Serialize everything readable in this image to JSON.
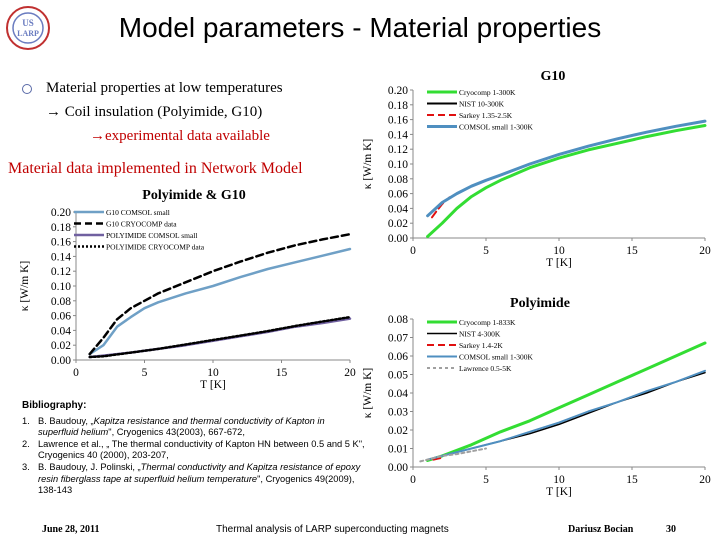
{
  "slide": {
    "title": "Model parameters - Material properties",
    "bullet_main": "Material properties at low temperatures",
    "bullet_sub": "Coil insulation (Polyimide, G10)",
    "bullet_sub_arrow": "→",
    "experimental": "→experimental data available",
    "network_model": "Material data implemented in Network Model",
    "logo_text": "US LARP"
  },
  "bibliography": {
    "heading": "Bibliography:",
    "refs": [
      {
        "num": "1.",
        "pre": "B. Baudouy, „",
        "ital": "Kapitza resistance and thermal conductivity of Kapton in superfluid helium",
        "post": "\", Cryogenics 43(2003), 667-672,"
      },
      {
        "num": "2.",
        "pre": "Lawrence et al., „ The thermal conductivity of Kapton HN between 0.5 and 5 K\", Cryogenics 40 (2000), 203-207,",
        "ital": "",
        "post": ""
      },
      {
        "num": "3.",
        "pre": "B. Baudouy, J. Polinski, „",
        "ital": "Thermal conductivity and Kapitza resistance of epoxy resin fiberglass tape at superfluid helium temperature",
        "post": "\", Cryogenics 49(2009), 138-143"
      }
    ]
  },
  "footer": {
    "date": "June 28, 2011",
    "center": "Thermal analysis of LARP superconducting magnets",
    "author": "Dariusz Bocian",
    "page": "30"
  },
  "chart_data": [
    {
      "id": "left",
      "type": "line",
      "title": "Polyimide & G10",
      "xlabel": "T [K]",
      "ylabel": "κ [W/m K]",
      "xlim": [
        0,
        20
      ],
      "ylim": [
        0,
        0.2
      ],
      "xticks": [
        0,
        5,
        10,
        15,
        20
      ],
      "yticks": [
        "0.00",
        "0.02",
        "0.04",
        "0.06",
        "0.08",
        "0.10",
        "0.12",
        "0.14",
        "0.16",
        "0.18",
        "0.20"
      ],
      "legend_position": "top-left",
      "series": [
        {
          "name": "G10 COMSOL small",
          "color": "#6fa0c6",
          "dash": "solid",
          "width": 2.5,
          "x": [
            1,
            2,
            3,
            4,
            5,
            6,
            8,
            10,
            12,
            14,
            16,
            18,
            20
          ],
          "y": [
            0.008,
            0.02,
            0.045,
            0.058,
            0.07,
            0.078,
            0.09,
            0.1,
            0.112,
            0.123,
            0.132,
            0.141,
            0.15
          ]
        },
        {
          "name": "G10 CRYOCOMP data",
          "color": "#000000",
          "dash": "long",
          "width": 2.5,
          "x": [
            1,
            2,
            3,
            4,
            5,
            6,
            8,
            10,
            12,
            14,
            16,
            18,
            20
          ],
          "y": [
            0.008,
            0.03,
            0.055,
            0.07,
            0.08,
            0.09,
            0.105,
            0.12,
            0.133,
            0.145,
            0.155,
            0.163,
            0.17
          ]
        },
        {
          "name": "POLYIMIDE COMSOL small",
          "color": "#7060a0",
          "dash": "solid",
          "width": 2.5,
          "x": [
            1,
            2,
            4,
            6,
            8,
            10,
            12,
            14,
            16,
            18,
            20
          ],
          "y": [
            0.004,
            0.006,
            0.01,
            0.015,
            0.02,
            0.026,
            0.032,
            0.038,
            0.045,
            0.05,
            0.056
          ]
        },
        {
          "name": "POLYIMIDE CRYOCOMP data",
          "color": "#000000",
          "dash": "dot",
          "width": 2.5,
          "x": [
            1,
            2,
            4,
            6,
            8,
            10,
            12,
            14,
            16,
            18,
            20
          ],
          "y": [
            0.004,
            0.005,
            0.01,
            0.015,
            0.021,
            0.027,
            0.033,
            0.039,
            0.046,
            0.052,
            0.058
          ]
        }
      ]
    },
    {
      "id": "g10",
      "type": "line",
      "title": "G10",
      "xlabel": "T [K]",
      "ylabel": "κ [W/m K]",
      "xlim": [
        0,
        20
      ],
      "ylim": [
        0,
        0.2
      ],
      "xticks": [
        0,
        5,
        10,
        15,
        20
      ],
      "yticks": [
        "0.00",
        "0.02",
        "0.04",
        "0.06",
        "0.08",
        "0.10",
        "0.12",
        "0.14",
        "0.16",
        "0.18",
        "0.20"
      ],
      "legend_position": "top-left",
      "series": [
        {
          "name": "Cryocomp 1-300K",
          "color": "#33dd33",
          "dash": "solid",
          "width": 3,
          "x": [
            1,
            2,
            3,
            4,
            5,
            6,
            8,
            10,
            12,
            14,
            16,
            18,
            20
          ],
          "y": [
            0.002,
            0.02,
            0.04,
            0.056,
            0.068,
            0.078,
            0.095,
            0.108,
            0.119,
            0.128,
            0.137,
            0.145,
            0.152
          ]
        },
        {
          "name": "NIST 10-300K",
          "color": "#000000",
          "dash": "solid",
          "width": 2,
          "x": [
            10,
            12,
            14,
            16,
            18,
            20
          ],
          "y": [
            0.113,
            0.124,
            0.134,
            0.143,
            0.151,
            0.158
          ]
        },
        {
          "name": "Sarkey 1.35-2.5K",
          "color": "#e01010",
          "dash": "long",
          "width": 2,
          "x": [
            1.3,
            1.6,
            2,
            2.5
          ],
          "y": [
            0.028,
            0.036,
            0.046,
            0.055
          ]
        },
        {
          "name": "COMSOL small 1-300K",
          "color": "#4f8fc0",
          "dash": "solid",
          "width": 3,
          "x": [
            1,
            2,
            3,
            4,
            5,
            6,
            8,
            10,
            12,
            14,
            16,
            18,
            20
          ],
          "y": [
            0.03,
            0.048,
            0.06,
            0.07,
            0.078,
            0.085,
            0.1,
            0.113,
            0.124,
            0.134,
            0.143,
            0.151,
            0.158
          ]
        }
      ]
    },
    {
      "id": "polyimide",
      "type": "line",
      "title": "Polyimide",
      "xlabel": "T [K]",
      "ylabel": "κ [W/m K]",
      "xlim": [
        0,
        20
      ],
      "ylim": [
        0,
        0.08
      ],
      "xticks": [
        0,
        5,
        10,
        15,
        20
      ],
      "yticks": [
        "0.00",
        "0.01",
        "0.02",
        "0.03",
        "0.04",
        "0.05",
        "0.06",
        "0.07",
        "0.08"
      ],
      "legend_position": "top-left",
      "series": [
        {
          "name": "Cryocomp 1-833K",
          "color": "#33dd33",
          "dash": "solid",
          "width": 3,
          "x": [
            1,
            2,
            4,
            6,
            8,
            10,
            12,
            14,
            16,
            18,
            20
          ],
          "y": [
            0.0035,
            0.006,
            0.012,
            0.019,
            0.025,
            0.032,
            0.039,
            0.046,
            0.053,
            0.06,
            0.067
          ]
        },
        {
          "name": "NIST 4-300K",
          "color": "#000000",
          "dash": "solid",
          "width": 1.5,
          "x": [
            4,
            6,
            8,
            10,
            12,
            14,
            16,
            18,
            20
          ],
          "y": [
            0.01,
            0.014,
            0.018,
            0.023,
            0.029,
            0.035,
            0.04,
            0.046,
            0.051
          ]
        },
        {
          "name": "Sarkey 1.4-2K",
          "color": "#e01010",
          "dash": "long",
          "width": 2,
          "x": [
            1.4,
            1.7,
            2
          ],
          "y": [
            0.004,
            0.0045,
            0.005
          ]
        },
        {
          "name": "COMSOL small 1-300K",
          "color": "#4f8fc0",
          "dash": "solid",
          "width": 2,
          "x": [
            1,
            2,
            4,
            6,
            8,
            10,
            12,
            14,
            16,
            18,
            20
          ],
          "y": [
            0.004,
            0.006,
            0.01,
            0.014,
            0.019,
            0.024,
            0.03,
            0.035,
            0.041,
            0.046,
            0.052
          ]
        },
        {
          "name": "Lawrence 0.5-5K",
          "color": "#a0a0a0",
          "dash": "short",
          "width": 2,
          "x": [
            0.5,
            1,
            2,
            3,
            4,
            5
          ],
          "y": [
            0.003,
            0.004,
            0.006,
            0.007,
            0.0085,
            0.01
          ]
        }
      ]
    }
  ]
}
